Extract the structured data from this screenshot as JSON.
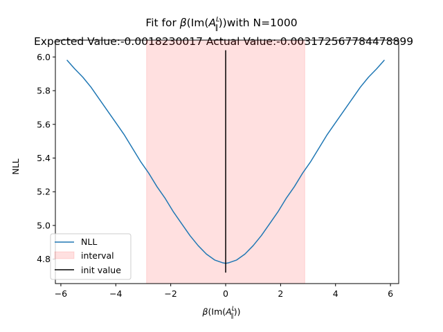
{
  "chart_data": {
    "type": "line",
    "title_prefix": "Fit for ",
    "title_symbol": "β",
    "title_arg_open": "(Im(",
    "title_arg_var": "A",
    "title_arg_sup": "L",
    "title_arg_sub": "∥",
    "title_arg_close": "))",
    "title_suffix": "with N=1000",
    "subtitle": "Expected Value:-0.0018230017 Actual Value:-0.003172567784478899",
    "xlabel_symbol": "β",
    "xlabel_open": "(Im(",
    "xlabel_var": "A",
    "xlabel_sup": "L",
    "xlabel_sub": "∥",
    "xlabel_close": "))",
    "ylabel": "NLL",
    "xlim": [
      -6.2,
      6.3
    ],
    "ylim": [
      4.655,
      6.1
    ],
    "xticks": [
      -6,
      -4,
      -2,
      0,
      2,
      4,
      6
    ],
    "xtick_labels": [
      "−6",
      "−4",
      "−2",
      "0",
      "2",
      "4",
      "6"
    ],
    "yticks": [
      4.8,
      5.0,
      5.2,
      5.4,
      5.6,
      5.8,
      6.0
    ],
    "ytick_labels": [
      "4.8",
      "5.0",
      "5.2",
      "5.4",
      "5.6",
      "5.8",
      "6.0"
    ],
    "series": [
      {
        "name": "NLL",
        "color": "#1f77b4",
        "x": [
          -5.77,
          -5.5,
          -5.2,
          -4.9,
          -4.6,
          -4.3,
          -4.0,
          -3.7,
          -3.4,
          -3.1,
          -2.8,
          -2.5,
          -2.2,
          -1.9,
          -1.6,
          -1.3,
          -1.0,
          -0.7,
          -0.4,
          -0.1,
          0.0,
          0.1,
          0.4,
          0.7,
          1.0,
          1.3,
          1.6,
          1.9,
          2.2,
          2.5,
          2.8,
          3.1,
          3.4,
          3.7,
          4.0,
          4.3,
          4.6,
          4.9,
          5.2,
          5.5,
          5.77
        ],
        "y": [
          5.98,
          5.93,
          5.88,
          5.82,
          5.75,
          5.68,
          5.61,
          5.54,
          5.46,
          5.38,
          5.31,
          5.23,
          5.16,
          5.08,
          5.01,
          4.94,
          4.88,
          4.83,
          4.795,
          4.778,
          4.775,
          4.778,
          4.795,
          4.83,
          4.88,
          4.94,
          5.01,
          5.08,
          5.16,
          5.23,
          5.31,
          5.38,
          5.46,
          5.54,
          5.61,
          5.68,
          5.75,
          5.82,
          5.88,
          5.93,
          5.98
        ]
      }
    ],
    "interval": {
      "name": "interval",
      "x0": -2.88,
      "x1": 2.88,
      "color": "#ff0000",
      "alpha": 0.12
    },
    "init_value": {
      "name": "init value",
      "x": 0.0,
      "y0": 4.72,
      "y1": 6.04,
      "color": "#000000"
    },
    "legend_placement": "lower-left",
    "grid": false
  }
}
